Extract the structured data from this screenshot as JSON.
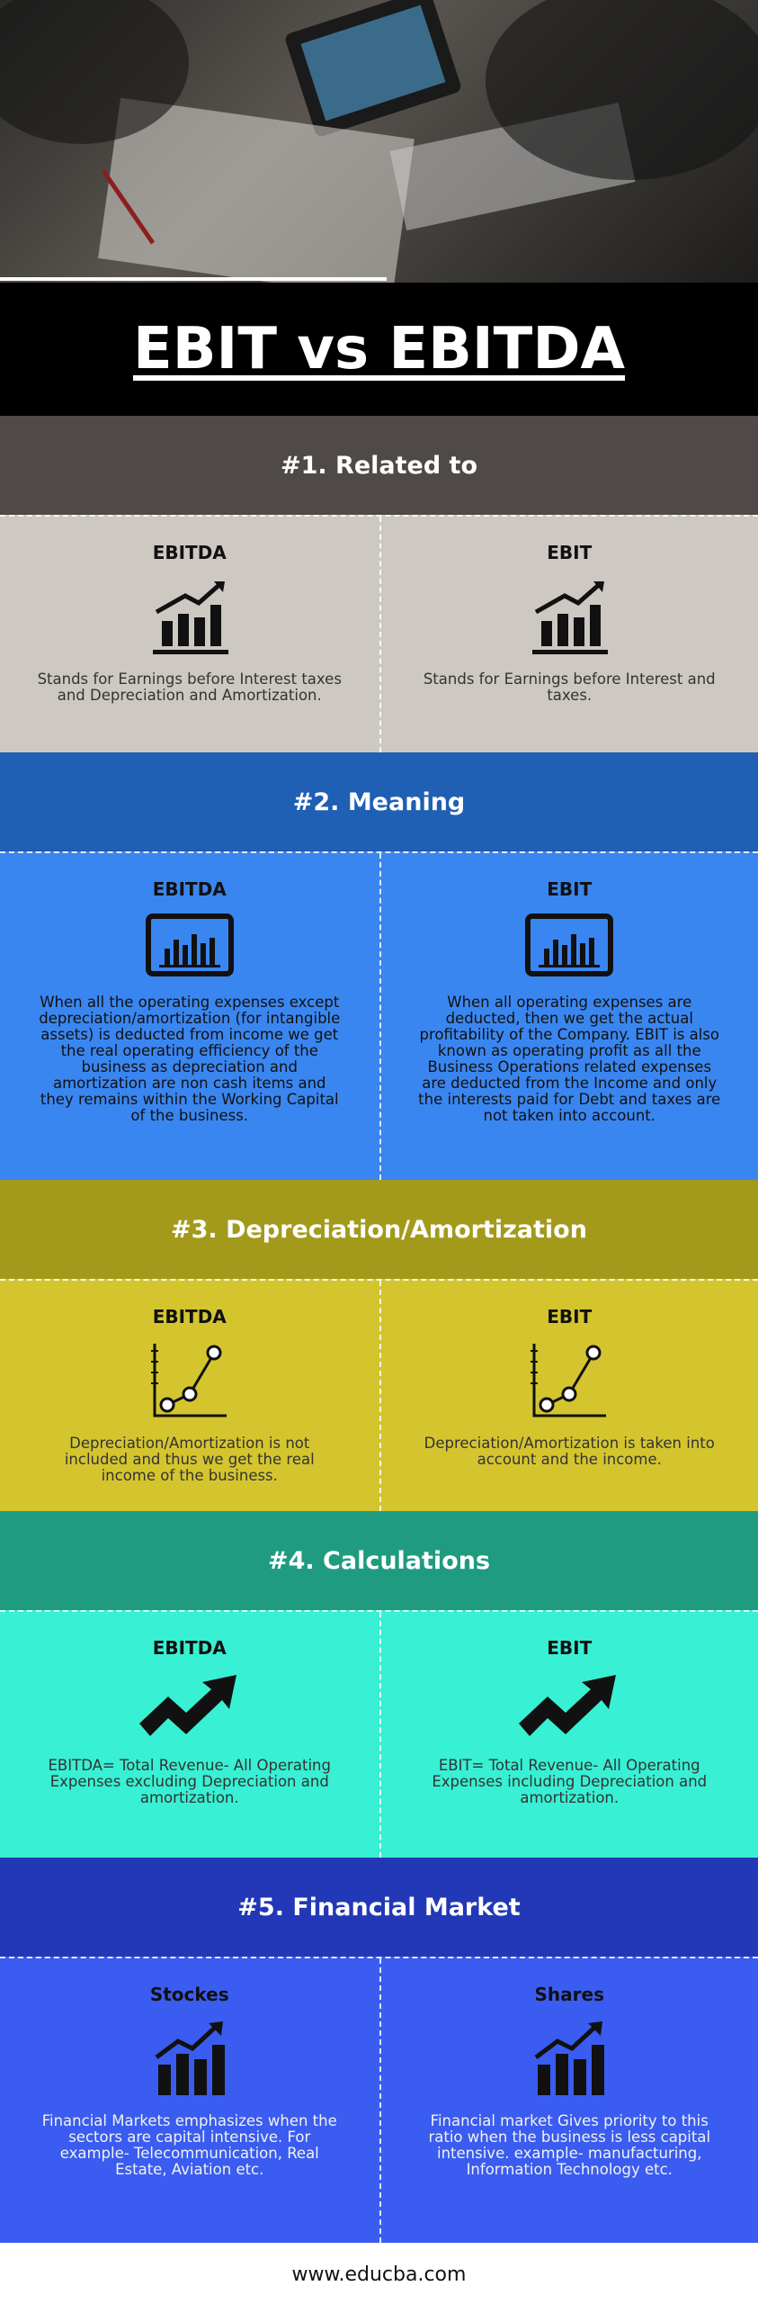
{
  "title": "EBIT vs EBITDA",
  "sections": [
    {
      "heading": "#1. Related to",
      "left": {
        "label": "EBITDA",
        "text": "Stands for Earnings before Interest taxes and Depreciation and Amortization."
      },
      "right": {
        "label": "EBIT",
        "text": "Stands for Earnings before Interest and taxes."
      }
    },
    {
      "heading": "#2. Meaning",
      "left": {
        "label": "EBITDA",
        "text": "When all the operating expenses except depreciation/amortization (for intangible assets) is deducted from income we get the real operating efficiency of the business as depreciation and amortization are non cash items and they remains within the Working Capital of the business."
      },
      "right": {
        "label": "EBIT",
        "text": "When all operating expenses are deducted, then we get the actual profitability of the Company. EBIT is also known as operating profit as all the Business Operations related expenses are deducted from the Income and only the interests paid for Debt and taxes are not taken into account."
      }
    },
    {
      "heading": "#3. Depreciation/Amortization",
      "left": {
        "label": "EBITDA",
        "text": "Depreciation/Amortization is not included and thus we get the real income of the business."
      },
      "right": {
        "label": "EBIT",
        "text": "Depreciation/Amortization is taken into account and the income."
      }
    },
    {
      "heading": "#4. Calculations",
      "left": {
        "label": "EBITDA",
        "text": "EBITDA= Total Revenue- All Operating Expenses excluding Depreciation and amortization."
      },
      "right": {
        "label": "EBIT",
        "text": "EBIT= Total Revenue- All Operating Expenses including Depreciation and amortization."
      }
    },
    {
      "heading": "#5. Financial Market",
      "left": {
        "label": "Stockes",
        "text": "Financial Markets emphasizes when the sectors are capital intensive. For example- Telecommunication, Real Estate, Aviation etc."
      },
      "right": {
        "label": "Shares",
        "text": "Financial market Gives priority to this ratio when the business is less capital intensive. example- manufacturing, Information Technology etc."
      }
    }
  ],
  "footer": "www.educba.com"
}
